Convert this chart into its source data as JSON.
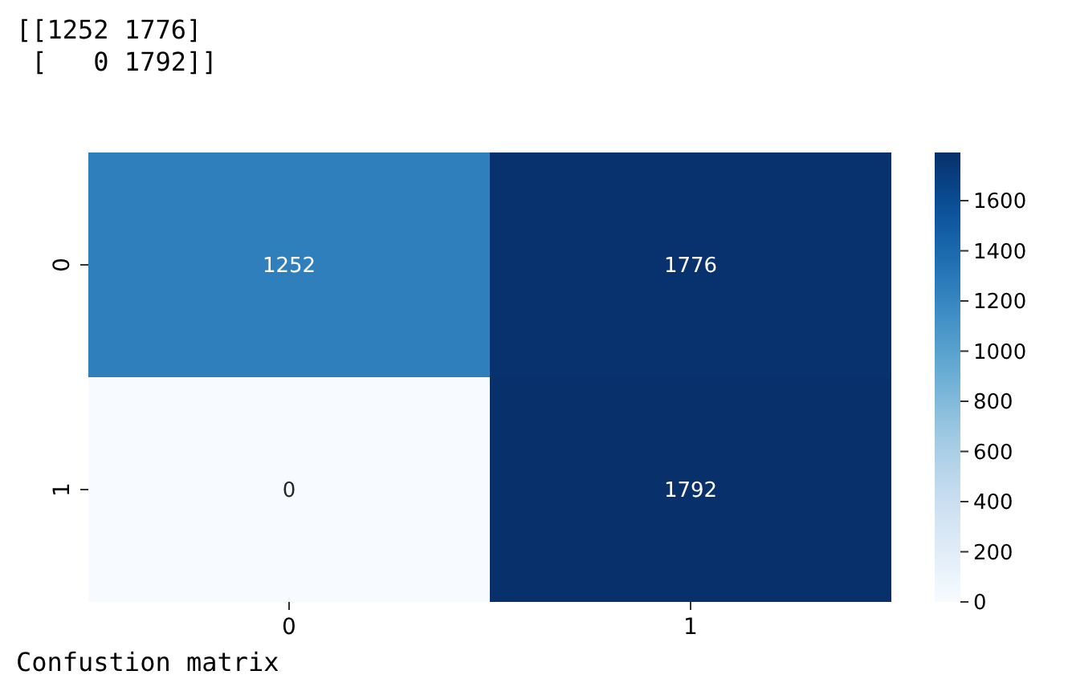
{
  "chart_data": {
    "type": "heatmap",
    "categories": [
      "0",
      "1"
    ],
    "y_categories": [
      "0",
      "1"
    ],
    "cells": [
      [
        1252,
        1776
      ],
      [
        0,
        1792
      ]
    ],
    "data_labels": true,
    "clim": [
      0,
      1792
    ],
    "cticks": [
      0,
      200,
      400,
      600,
      800,
      1000,
      1200,
      1400,
      1600
    ],
    "annotations": [
      "[[1252 1776]\n [   0 1792]]",
      "Confustion matrix"
    ]
  }
}
